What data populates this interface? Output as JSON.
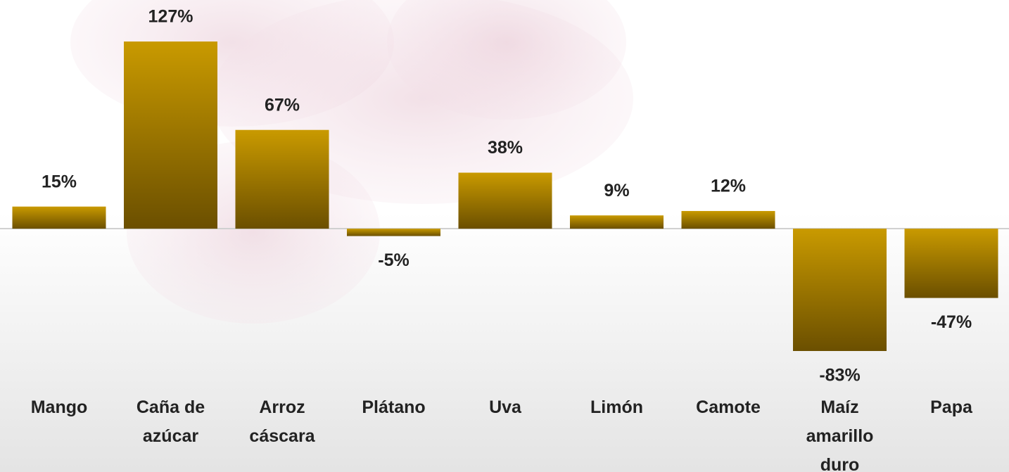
{
  "chart_data": {
    "type": "bar",
    "categories": [
      "Mango",
      "Caña de azúcar",
      "Arroz cáscara",
      "Plátano",
      "Uva",
      "Limón",
      "Camote",
      "Maíz amarillo duro",
      "Papa"
    ],
    "values": [
      15,
      127,
      67,
      -5,
      38,
      9,
      12,
      -83,
      -47
    ],
    "value_labels": [
      "15%",
      "127%",
      "67%",
      "-5%",
      "38%",
      "9%",
      "12%",
      "-83%",
      "-47%"
    ],
    "color": "#c99a00"
  }
}
